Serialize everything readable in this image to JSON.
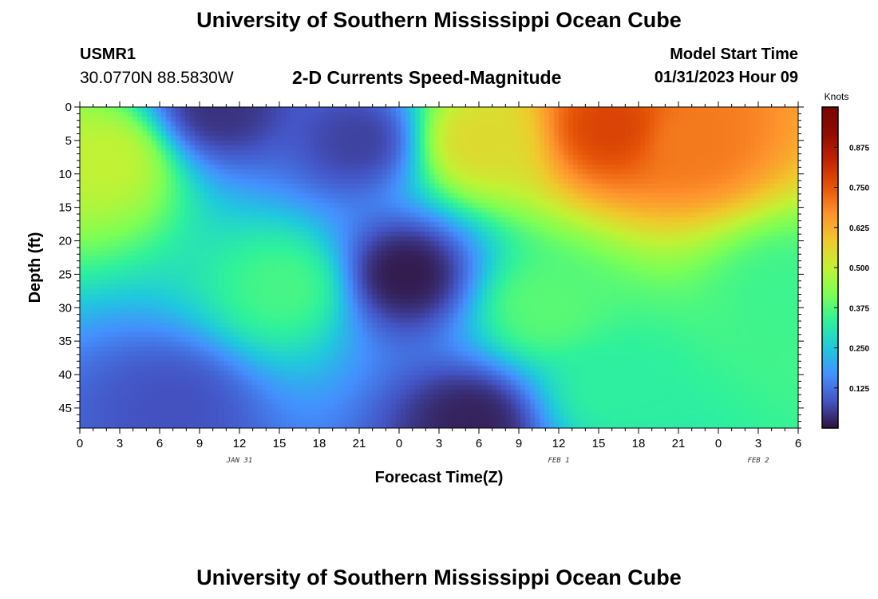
{
  "header": {
    "title": "University of Southern Mississippi Ocean Cube",
    "station": "USMR1",
    "coordinates": "30.0770N  88.5830W",
    "subtitle": "2-D Currents Speed-Magnitude",
    "model_start_label": "Model Start Time",
    "model_start_value": "01/31/2023 Hour 09"
  },
  "footer": {
    "title": "University of Southern Mississippi Ocean Cube"
  },
  "chart_data": {
    "type": "heatmap",
    "xlabel": "Forecast Time(Z)",
    "ylabel": "Depth (ft)",
    "x_tick_labels": [
      "0",
      "3",
      "6",
      "9",
      "12",
      "15",
      "18",
      "21",
      "0",
      "3",
      "6",
      "9",
      "12",
      "15",
      "18",
      "21",
      "0",
      "3",
      "6"
    ],
    "x_range_hours": [
      0,
      54
    ],
    "date_labels": [
      {
        "text": "JAN 31",
        "hour": 12
      },
      {
        "text": "FEB 1",
        "hour": 36
      },
      {
        "text": "FEB 2",
        "hour": 51
      }
    ],
    "y_tick_labels": [
      "0",
      "5",
      "10",
      "15",
      "20",
      "25",
      "30",
      "35",
      "40",
      "45"
    ],
    "y_range_ft": [
      0,
      48
    ],
    "colorbar": {
      "unit": "Knots",
      "range": [
        0,
        1.0
      ],
      "tick_labels": [
        "0.125",
        "0.250",
        "0.375",
        "0.500",
        "0.625",
        "0.750",
        "0.875"
      ],
      "tick_values": [
        0.125,
        0.25,
        0.375,
        0.5,
        0.625,
        0.75,
        0.875
      ],
      "colormap": [
        "#30123b",
        "#4454c4",
        "#4490fe",
        "#1fc9dd",
        "#2ef19c",
        "#7cff55",
        "#c2f234",
        "#f0c92c",
        "#fe932d",
        "#e65508",
        "#c22402",
        "#900c00",
        "#7a0403"
      ]
    },
    "speed_field": {
      "description_units": "knots",
      "features": [
        {
          "hour": 2,
          "depth": 8,
          "value": 0.5
        },
        {
          "hour": 15.5,
          "depth": 27,
          "value": 0.36
        },
        {
          "hour": 24.5,
          "depth": 25,
          "value": 0.01
        },
        {
          "hour": 21,
          "depth": 5,
          "value": 0.06
        },
        {
          "hour": 30,
          "depth": 5,
          "value": 0.55
        },
        {
          "hour": 40,
          "depth": 3,
          "value": 0.78
        },
        {
          "hour": 46,
          "depth": 5,
          "value": 0.7
        },
        {
          "hour": 35,
          "depth": 30,
          "value": 0.38
        },
        {
          "hour": 40,
          "depth": 42,
          "value": 0.33
        },
        {
          "hour": 53,
          "depth": 28,
          "value": 0.35
        },
        {
          "hour": 29.5,
          "depth": 47,
          "value": 0.02
        },
        {
          "hour": 7,
          "depth": 45,
          "value": 0.08
        },
        {
          "hour": 10.5,
          "depth": 0,
          "value": 0.04
        }
      ]
    }
  }
}
